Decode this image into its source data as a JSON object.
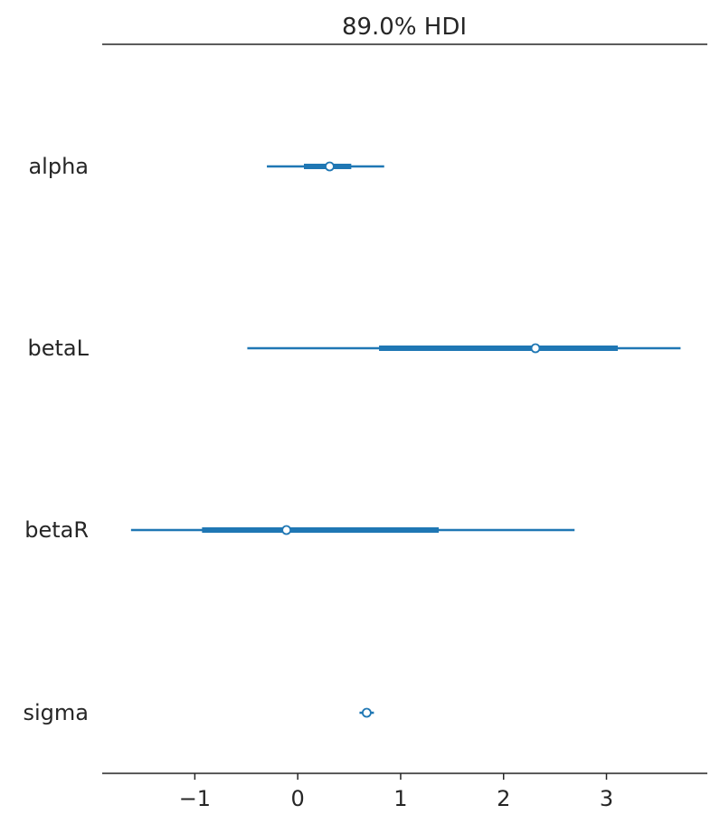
{
  "chart_data": {
    "type": "forest",
    "title": "89.0% HDI",
    "xlim": [
      -1.9,
      3.98
    ],
    "xticks": [
      -1,
      0,
      1,
      2,
      3
    ],
    "xtick_labels": [
      "−1",
      "0",
      "1",
      "2",
      "3"
    ],
    "series_color": "#1f77b4",
    "variables": [
      {
        "name": "alpha",
        "mean": 0.31,
        "inner": [
          0.06,
          0.52
        ],
        "outer": [
          -0.3,
          0.84
        ]
      },
      {
        "name": "betaL",
        "mean": 2.31,
        "inner": [
          0.79,
          3.11
        ],
        "outer": [
          -0.49,
          3.72
        ]
      },
      {
        "name": "betaR",
        "mean": -0.11,
        "inner": [
          -0.93,
          1.37
        ],
        "outer": [
          -1.62,
          2.69
        ]
      },
      {
        "name": "sigma",
        "mean": 0.67,
        "inner": [
          0.63,
          0.71
        ],
        "outer": [
          0.6,
          0.74
        ]
      }
    ]
  }
}
